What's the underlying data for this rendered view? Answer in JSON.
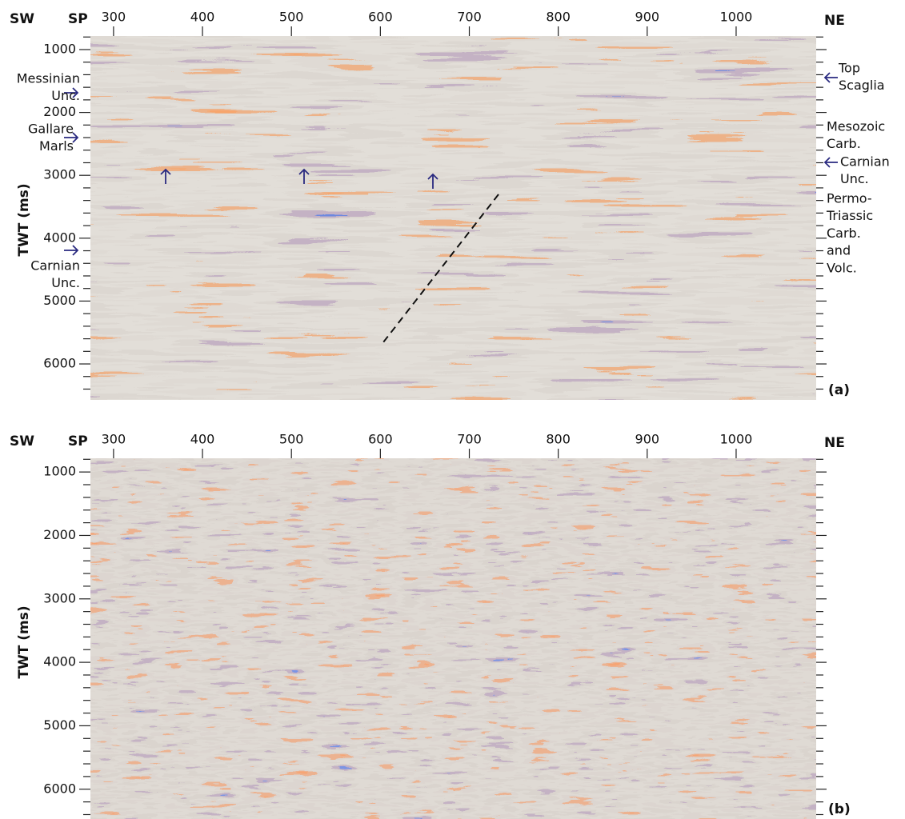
{
  "panels": [
    {
      "label": "(a)",
      "left_label": "SW",
      "right_label": "NE",
      "x_title": "SP",
      "y_title": "TWT (ms)",
      "xlim": [
        274,
        1090
      ],
      "xticks": [
        300,
        400,
        500,
        600,
        700,
        800,
        900,
        1000
      ],
      "ylim": [
        784,
        6572
      ],
      "yticks": [
        1000,
        2000,
        3000,
        4000,
        5000,
        6000
      ],
      "yminor": [
        800,
        1200,
        1400,
        1600,
        1800,
        2200,
        2400,
        2600,
        2800,
        3200,
        3400,
        3600,
        3800,
        4200,
        4400,
        4600,
        4800,
        5200,
        5400,
        5600,
        5800,
        6200,
        6400
      ],
      "annotations": [
        {
          "lines": [
            "Messinian",
            "Unc."
          ]
        },
        {
          "lines": [
            "Gallare",
            "Marls"
          ]
        },
        {
          "lines": [
            "Carnian",
            "Unc."
          ]
        },
        {
          "lines": [
            "Top",
            "Scaglia"
          ]
        },
        {
          "lines": [
            "Mesozoic",
            "Carb."
          ]
        },
        {
          "lines": [
            "Carnian",
            "Unc."
          ]
        },
        {
          "lines": [
            "Permo-",
            "Triassic",
            "Carb.",
            "and",
            "Volc."
          ]
        }
      ]
    },
    {
      "label": "(b)",
      "left_label": "SW",
      "right_label": "NE",
      "x_title": "SP",
      "y_title": "TWT (ms)",
      "xlim": [
        274,
        1090
      ],
      "xticks": [
        300,
        400,
        500,
        600,
        700,
        800,
        900,
        1000
      ],
      "ylim": [
        784,
        6520
      ],
      "yticks": [
        1000,
        2000,
        3000,
        4000,
        5000,
        6000
      ],
      "yminor": [
        800,
        1200,
        1400,
        1600,
        1800,
        2200,
        2400,
        2600,
        2800,
        3200,
        3400,
        3600,
        3800,
        4200,
        4400,
        4600,
        4800,
        5200,
        5400,
        5600,
        5800,
        6200,
        6400
      ],
      "annotations": []
    }
  ]
}
